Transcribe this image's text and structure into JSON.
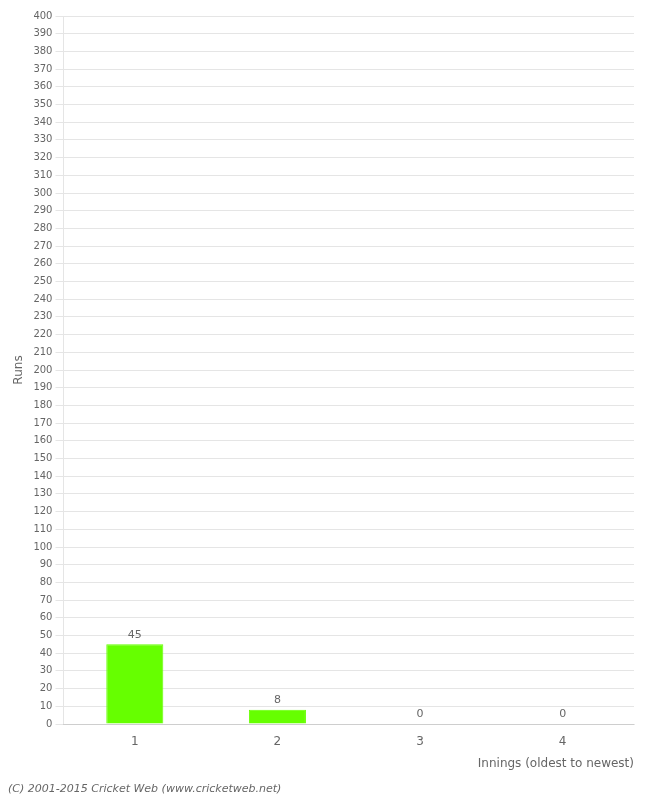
{
  "chart_data": {
    "type": "bar",
    "categories": [
      "1",
      "2",
      "3",
      "4"
    ],
    "values": [
      45,
      8,
      0,
      0
    ],
    "color": "#66ff00",
    "xlabel": "Innings (oldest to newest)",
    "ylabel": "Runs",
    "ylim": [
      0,
      400
    ],
    "yticks": [
      0,
      10,
      20,
      30,
      40,
      50,
      60,
      70,
      80,
      90,
      100,
      110,
      120,
      130,
      140,
      150,
      160,
      170,
      180,
      190,
      200,
      210,
      220,
      230,
      240,
      250,
      260,
      270,
      280,
      290,
      300,
      310,
      320,
      330,
      340,
      350,
      360,
      370,
      380,
      390,
      400
    ],
    "grid": true,
    "data_labels": true,
    "annotations": [
      "(C) 2001-2015 Cricket Web (www.cricketweb.net)"
    ]
  }
}
